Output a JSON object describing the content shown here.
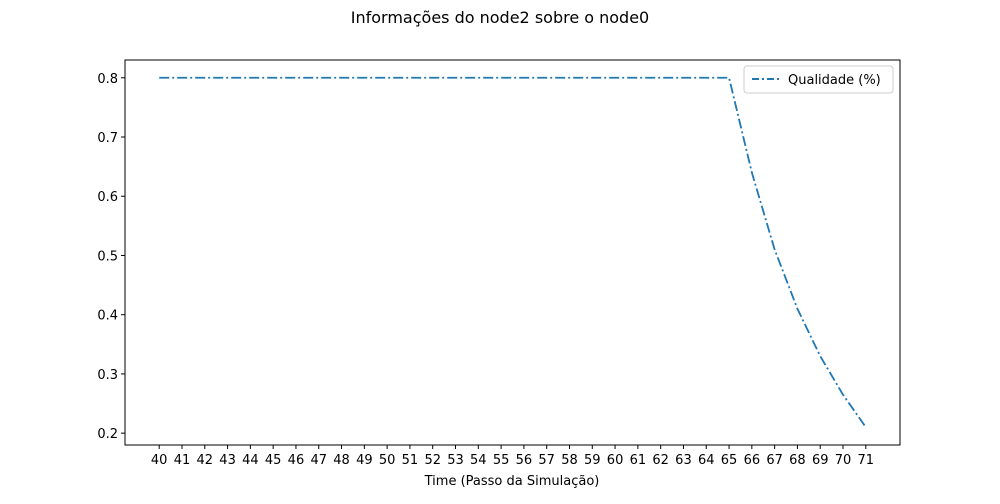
{
  "chart_data": {
    "type": "line",
    "title": "Informações do node2 sobre o node0",
    "xlabel": "Time (Passo da Simulação)",
    "ylabel": "",
    "xlim": [
      38.5,
      72.5
    ],
    "ylim": [
      0.18,
      0.83
    ],
    "grid": false,
    "legend_position": "top-right",
    "x_ticks": [
      40,
      41,
      42,
      43,
      44,
      45,
      46,
      47,
      48,
      49,
      50,
      51,
      52,
      53,
      54,
      55,
      56,
      57,
      58,
      59,
      60,
      61,
      62,
      63,
      64,
      65,
      66,
      67,
      68,
      69,
      70,
      71
    ],
    "y_ticks": [
      0.2,
      0.3,
      0.4,
      0.5,
      0.6,
      0.7,
      0.8
    ],
    "series": [
      {
        "name": "Qualidade (%)",
        "color": "#1f77b4",
        "line_style": "dashdot",
        "x": [
          40,
          41,
          42,
          43,
          44,
          45,
          46,
          47,
          48,
          49,
          50,
          51,
          52,
          53,
          54,
          55,
          56,
          57,
          58,
          59,
          60,
          61,
          62,
          63,
          64,
          65,
          66,
          67,
          68,
          69,
          70,
          71
        ],
        "y": [
          0.8,
          0.8,
          0.8,
          0.8,
          0.8,
          0.8,
          0.8,
          0.8,
          0.8,
          0.8,
          0.8,
          0.8,
          0.8,
          0.8,
          0.8,
          0.8,
          0.8,
          0.8,
          0.8,
          0.8,
          0.8,
          0.8,
          0.8,
          0.8,
          0.8,
          0.8,
          0.64,
          0.51,
          0.41,
          0.33,
          0.265,
          0.21
        ]
      }
    ]
  }
}
